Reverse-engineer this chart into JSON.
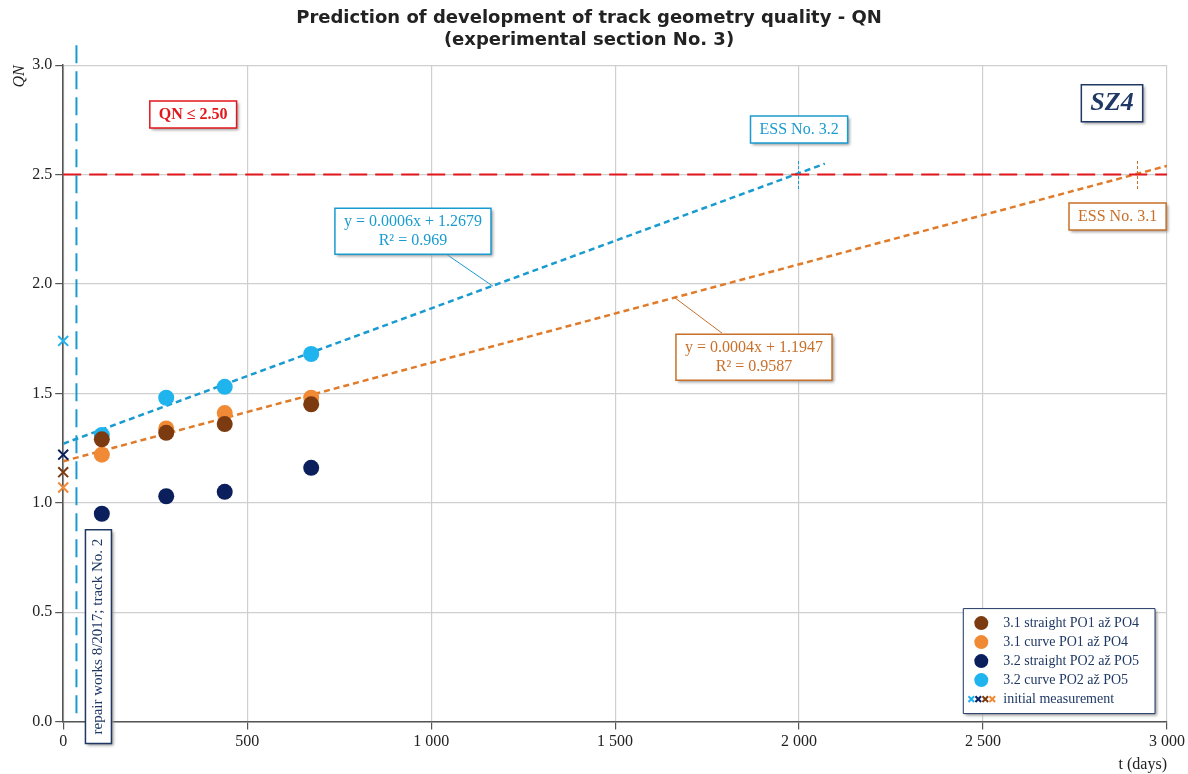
{
  "chart_data": {
    "type": "scatter",
    "title": "Prediction of development of track geometry quality - QN",
    "subtitle": "(experimental section No. 3)",
    "xlabel": "t (days)",
    "ylabel": "QN",
    "series": [
      {
        "name": "3.1 straight PO1 až PO4",
        "color": "#7b3a10",
        "x": [
          105,
          280,
          439,
          674
        ],
        "values": [
          1.29,
          1.32,
          1.36,
          1.45
        ]
      },
      {
        "name": "3.1 curve PO1 až PO4",
        "color": "#f08a35",
        "x": [
          105,
          280,
          439,
          674
        ],
        "values": [
          1.22,
          1.34,
          1.41,
          1.48
        ]
      },
      {
        "name": "3.2 straight PO2 až PO5",
        "color": "#0b1f5c",
        "x": [
          105,
          280,
          439,
          674
        ],
        "values": [
          0.95,
          1.03,
          1.05,
          1.16
        ]
      },
      {
        "name": "3.2 curve PO2 až PO5",
        "color": "#1fb4ee",
        "x": [
          105,
          280,
          439,
          674
        ],
        "values": [
          1.31,
          1.48,
          1.53,
          1.68
        ]
      },
      {
        "name": "initial measurement",
        "marker": "cross",
        "x": [
          0,
          0,
          0,
          0
        ],
        "values": [
          1.74,
          1.22,
          1.14,
          1.07
        ],
        "colors": [
          "#1fb4ee",
          "#0b1f5c",
          "#7b3a10",
          "#f08a35"
        ]
      },
      {
        "type": "line",
        "color": "#1a9bd0",
        "line_style": "dashed",
        "marker": "none",
        "x": [
          0,
          2070
        ],
        "values": [
          1.27,
          2.55
        ]
      },
      {
        "type": "line",
        "color": "#e07b2a",
        "line_style": "dashed",
        "marker": "none",
        "x": [
          0,
          3000
        ],
        "values": [
          1.19,
          2.54
        ]
      }
    ],
    "xlim": [
      0,
      3000
    ],
    "xticks": [
      0,
      500,
      {
        "value": 1000,
        "label": "1 000"
      },
      {
        "value": 1500,
        "label": "1 500"
      },
      {
        "value": 2000,
        "label": "2 000"
      },
      {
        "value": 2500,
        "label": "2 500"
      },
      {
        "value": 3000,
        "label": "3 000"
      }
    ],
    "ylim": [
      0,
      3
    ],
    "yticks": [
      {
        "value": 0,
        "label": "0.0"
      },
      0.5,
      {
        "value": 1,
        "label": "1.0"
      },
      1.5,
      {
        "value": 2,
        "label": "2.0"
      },
      2.5,
      {
        "value": 3,
        "label": "3.0"
      }
    ],
    "ref_lines": [
      {
        "axis": "y",
        "value": 2.5,
        "label": "QN ≤ 2.50",
        "color": "#e3161b",
        "line_style": "dashed"
      },
      {
        "axis": "x",
        "value": 36,
        "label": "repair works 8/2017; track No. 2",
        "color": "#1a9bd0",
        "line_style": "dashed"
      }
    ],
    "annotations": [
      {
        "text": "y = 0.0006x + 1.2679\nR² = 0.969",
        "x": 1168,
        "y": 1.99
      },
      {
        "text": "y = 0.0004x + 1.1947\nR² = 0.9587",
        "x": 1660,
        "y": 1.94
      },
      {
        "text": "ESS No. 3.2",
        "x": 2000,
        "y": 2.5
      },
      {
        "text": "ESS No. 3.1",
        "x": 2920,
        "y": 2.5
      },
      "SZ4"
    ],
    "grid": true,
    "legend": "bottom right",
    "marker": "circle"
  }
}
